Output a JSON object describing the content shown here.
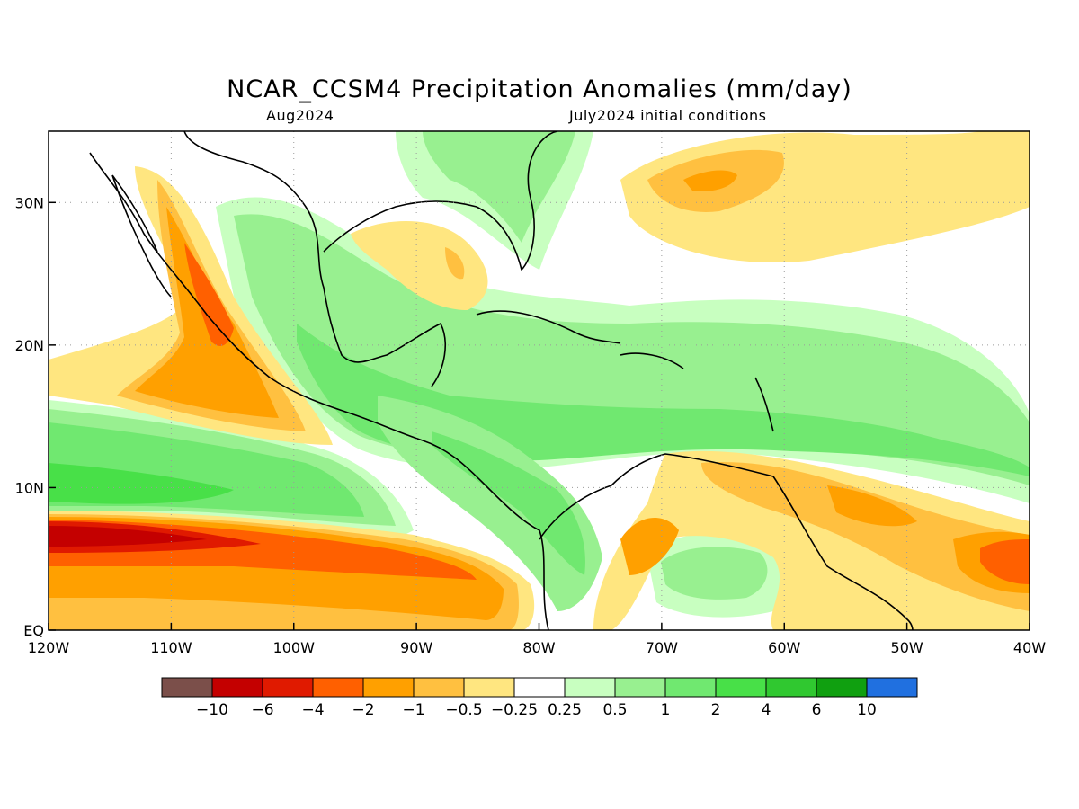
{
  "title": "NCAR_CCSM4 Precipitation Anomalies (mm/day)",
  "subtitle_left": "Aug2024",
  "subtitle_right": "July2024 initial conditions",
  "map": {
    "lon_range": [
      -120,
      -40
    ],
    "lat_range": [
      0,
      35
    ],
    "x_ticks": [
      {
        "lon": -120,
        "label": "120W"
      },
      {
        "lon": -110,
        "label": "110W"
      },
      {
        "lon": -100,
        "label": "100W"
      },
      {
        "lon": -90,
        "label": "90W"
      },
      {
        "lon": -80,
        "label": "80W"
      },
      {
        "lon": -70,
        "label": "70W"
      },
      {
        "lon": -60,
        "label": "60W"
      },
      {
        "lon": -50,
        "label": "50W"
      },
      {
        "lon": -40,
        "label": "40W"
      }
    ],
    "y_ticks": [
      {
        "lat": 0,
        "label": "EQ"
      },
      {
        "lat": 10,
        "label": "10N"
      },
      {
        "lat": 20,
        "label": "20N"
      },
      {
        "lat": 30,
        "label": "30N"
      }
    ],
    "grid": "dotted"
  },
  "colorbar": {
    "colors": [
      "#7b4f4a",
      "#c40000",
      "#e01a00",
      "#ff6000",
      "#ffa000",
      "#ffc040",
      "#ffe680",
      "#ffffff",
      "#c8ffc0",
      "#98f090",
      "#70e870",
      "#48e048",
      "#30c830",
      "#10a010",
      "#2070e0"
    ],
    "labels": [
      "−10",
      "−6",
      "−4",
      "−2",
      "−1",
      "−0.5",
      "−0.25",
      "0.25",
      "0.5",
      "1",
      "2",
      "4",
      "6",
      "10"
    ]
  }
}
